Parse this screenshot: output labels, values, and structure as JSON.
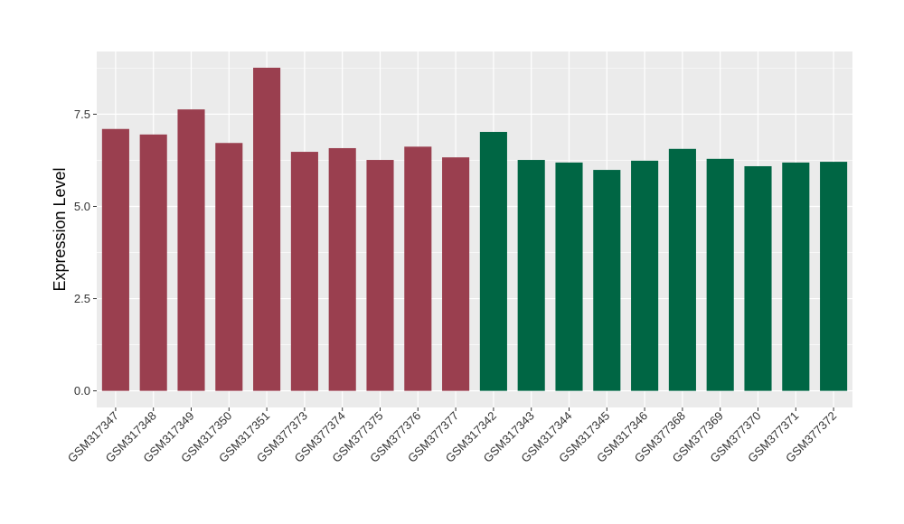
{
  "chart_data": {
    "type": "bar",
    "title": "",
    "xlabel": "",
    "ylabel": "Expression Level",
    "ylim": [
      -0.45,
      9.2
    ],
    "yticks": [
      0.0,
      2.5,
      5.0,
      7.5
    ],
    "ytick_labels": [
      "0.0",
      "2.5",
      "5.0",
      "7.5"
    ],
    "grid": true,
    "background": "#EBEBEB",
    "categories": [
      "GSM317347",
      "GSM317348",
      "GSM317349",
      "GSM317350",
      "GSM317351",
      "GSM377373",
      "GSM377374",
      "GSM377375",
      "GSM377376",
      "GSM377377",
      "GSM317342",
      "GSM317343",
      "GSM317344",
      "GSM317345",
      "GSM317346",
      "GSM377368",
      "GSM377369",
      "GSM377370",
      "GSM377371",
      "GSM377372"
    ],
    "values": [
      7.1,
      6.95,
      7.63,
      6.72,
      8.76,
      6.48,
      6.58,
      6.26,
      6.62,
      6.33,
      7.02,
      6.26,
      6.19,
      5.99,
      6.24,
      6.56,
      6.29,
      6.09,
      6.19,
      6.21
    ],
    "group_colors": [
      "#9A3F4F",
      "#006644"
    ],
    "bar_groups": [
      0,
      0,
      0,
      0,
      0,
      0,
      0,
      0,
      0,
      0,
      1,
      1,
      1,
      1,
      1,
      1,
      1,
      1,
      1,
      1
    ]
  }
}
